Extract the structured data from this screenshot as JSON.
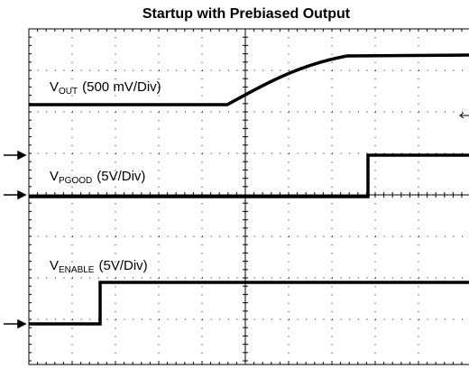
{
  "title": "Startup with Prebiased Output",
  "traces": [
    {
      "symbol": "V",
      "subscript": "OUT",
      "scale": "(500 mV/Div)"
    },
    {
      "symbol": "V",
      "subscript": "PGOOD",
      "scale": "(5V/Div)"
    },
    {
      "symbol": "V",
      "subscript": "ENABLE",
      "scale": "(5V/Div)"
    }
  ]
}
